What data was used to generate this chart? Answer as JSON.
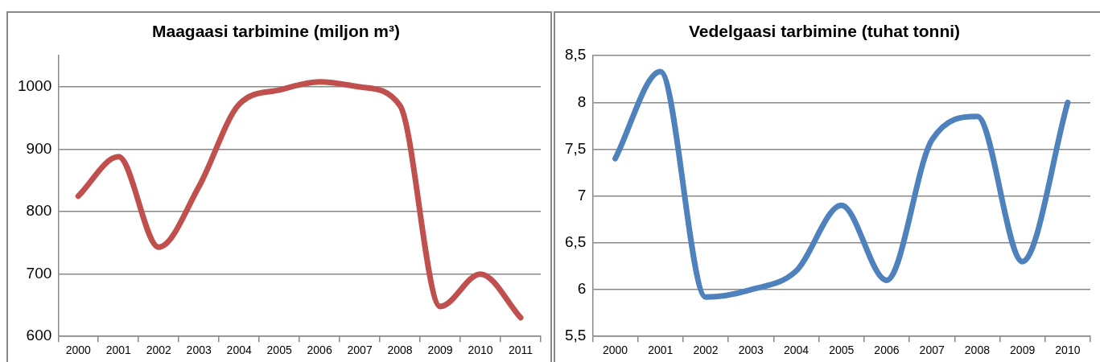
{
  "chart_data": [
    {
      "type": "line",
      "title": "Maagaasi tarbimine (miljon m³)",
      "categories": [
        "2000",
        "2001",
        "2002",
        "2003",
        "2004",
        "2005",
        "2006",
        "2007",
        "2008",
        "2009",
        "2010",
        "2011"
      ],
      "series": [
        {
          "color": "#c0504d",
          "values": [
            825,
            888,
            743,
            840,
            972,
            995,
            1008,
            1000,
            970,
            648,
            700,
            630
          ]
        }
      ],
      "ylim": [
        600,
        1050
      ],
      "yticks": [
        600,
        700,
        800,
        900,
        1000
      ],
      "grid": "y",
      "marker": "none",
      "line_style": "solid"
    },
    {
      "type": "line",
      "title": "Vedelgaasi tarbimine (tuhat tonni)",
      "categories": [
        "2000",
        "2001",
        "2002",
        "2003",
        "2004",
        "2005",
        "2006",
        "2007",
        "2008",
        "2009",
        "2010"
      ],
      "series": [
        {
          "color": "#4f81bd",
          "values": [
            7.4,
            8.33,
            5.92,
            6.0,
            6.2,
            6.9,
            6.1,
            7.6,
            7.85,
            6.3,
            8.0
          ]
        }
      ],
      "ylim": [
        5.5,
        8.5
      ],
      "yticks": [
        {
          "value": 5.5,
          "label": "5,5"
        },
        6,
        {
          "value": 6.5,
          "label": "6,5"
        },
        7,
        {
          "value": 7.5,
          "label": "7,5"
        },
        8,
        {
          "value": 8.5,
          "label": "8,5"
        }
      ],
      "grid": "y",
      "marker": "none",
      "line_style": "solid"
    }
  ]
}
